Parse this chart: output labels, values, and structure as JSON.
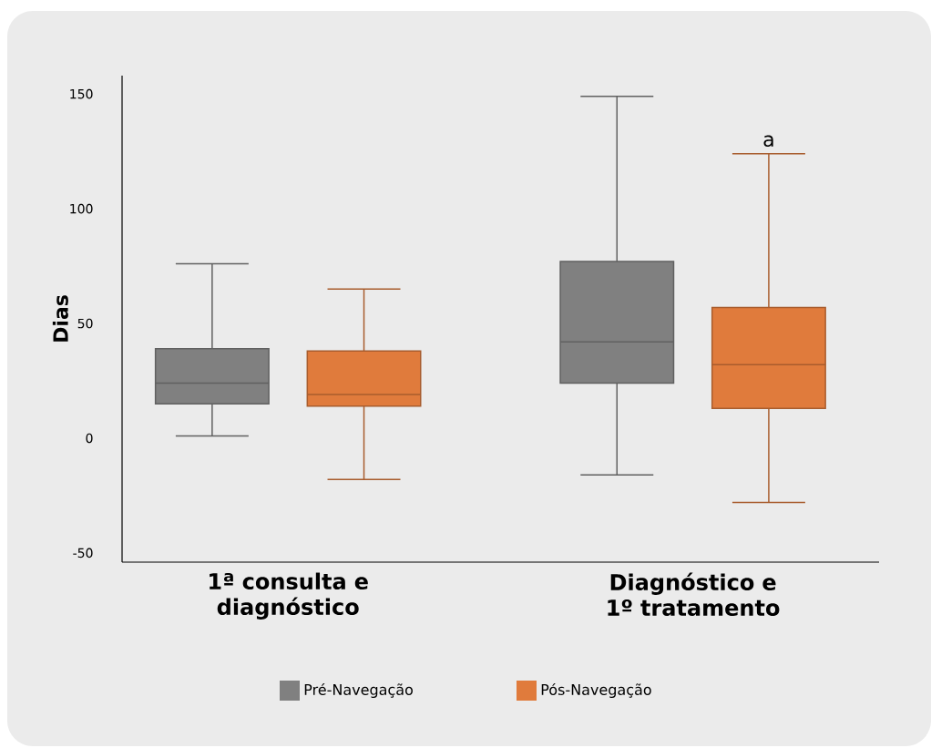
{
  "chart_data": {
    "type": "box",
    "ylabel": "Dias",
    "categories": [
      "1ª consulta e diagnóstico",
      "Diagnóstico e 1º tratamento"
    ],
    "series": [
      {
        "name": "Pré-Navegação",
        "color": "#808080",
        "boxes": [
          {
            "low": 1,
            "q1": 15,
            "median": 24,
            "q3": 39,
            "high": 76
          },
          {
            "low": -16,
            "q1": 24,
            "median": 42,
            "q3": 77,
            "high": 149
          }
        ]
      },
      {
        "name": "Pós-Navegação",
        "color": "#e07b3c",
        "boxes": [
          {
            "low": -18,
            "q1": 14,
            "median": 19,
            "q3": 38,
            "high": 65
          },
          {
            "low": -28,
            "q1": 13,
            "median": 32,
            "q3": 57,
            "high": 124
          }
        ]
      }
    ],
    "ylim": [
      -54,
      158
    ],
    "yticks": [
      -50,
      0,
      50,
      100,
      150
    ],
    "annotations": [
      "a"
    ],
    "grid": false,
    "legend": "bottom"
  }
}
